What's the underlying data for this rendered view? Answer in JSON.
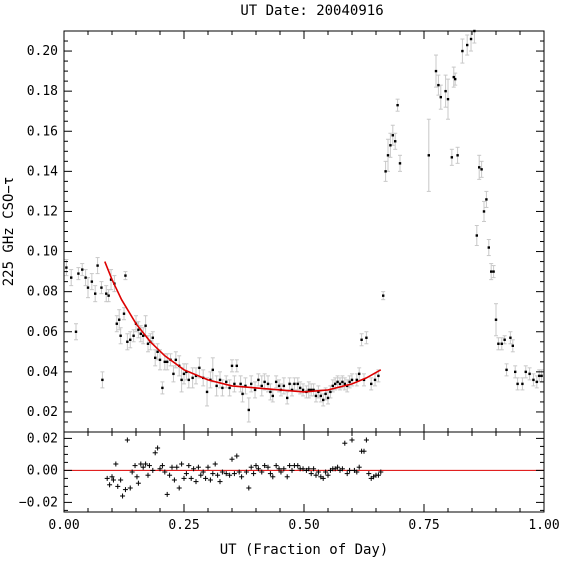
{
  "chart_data": [
    {
      "panel": "main",
      "type": "scatter",
      "title": "UT Date: 20040916",
      "xlabel": "",
      "ylabel": "225 GHz CSO−τ",
      "xlim": [
        0.0,
        1.0
      ],
      "ylim": [
        0.01,
        0.21
      ],
      "yticks": [
        0.02,
        0.04,
        0.06,
        0.08,
        0.1,
        0.12,
        0.14,
        0.16,
        0.18,
        0.2
      ],
      "ytick_labels": [
        "0.02",
        "0.04",
        "0.06",
        "0.08",
        "0.10",
        "0.12",
        "0.14",
        "0.16",
        "0.18",
        "0.20"
      ],
      "colors": {
        "points": "#000000",
        "errorbars": "#c8c8c8",
        "fit": "#dd0000"
      },
      "points": [
        [
          0.005,
          0.092,
          0.004
        ],
        [
          0.015,
          0.087,
          0.004
        ],
        [
          0.025,
          0.06,
          0.004
        ],
        [
          0.03,
          0.089,
          0.003
        ],
        [
          0.038,
          0.091,
          0.003
        ],
        [
          0.045,
          0.087,
          0.004
        ],
        [
          0.05,
          0.082,
          0.005
        ],
        [
          0.058,
          0.085,
          0.004
        ],
        [
          0.065,
          0.079,
          0.004
        ],
        [
          0.07,
          0.093,
          0.004
        ],
        [
          0.078,
          0.082,
          0.003
        ],
        [
          0.08,
          0.036,
          0.004
        ],
        [
          0.088,
          0.079,
          0.004
        ],
        [
          0.093,
          0.078,
          0.003
        ],
        [
          0.098,
          0.086,
          0.005
        ],
        [
          0.105,
          0.084,
          0.004
        ],
        [
          0.11,
          0.064,
          0.004
        ],
        [
          0.115,
          0.066,
          0.005
        ],
        [
          0.118,
          0.058,
          0.004
        ],
        [
          0.125,
          0.069,
          0.003
        ],
        [
          0.128,
          0.088,
          0.002
        ],
        [
          0.132,
          0.055,
          0.004
        ],
        [
          0.138,
          0.056,
          0.004
        ],
        [
          0.145,
          0.058,
          0.003
        ],
        [
          0.15,
          0.064,
          0.004
        ],
        [
          0.155,
          0.061,
          0.004
        ],
        [
          0.16,
          0.059,
          0.004
        ],
        [
          0.165,
          0.058,
          0.004
        ],
        [
          0.17,
          0.063,
          0.005
        ],
        [
          0.175,
          0.054,
          0.004
        ],
        [
          0.18,
          0.055,
          0.004
        ],
        [
          0.185,
          0.057,
          0.003
        ],
        [
          0.19,
          0.047,
          0.004
        ],
        [
          0.195,
          0.05,
          0.004
        ],
        [
          0.2,
          0.046,
          0.005
        ],
        [
          0.205,
          0.032,
          0.003
        ],
        [
          0.21,
          0.045,
          0.004
        ],
        [
          0.215,
          0.045,
          0.004
        ],
        [
          0.222,
          0.046,
          0.003
        ],
        [
          0.228,
          0.039,
          0.004
        ],
        [
          0.233,
          0.046,
          0.004
        ],
        [
          0.24,
          0.043,
          0.005
        ],
        [
          0.245,
          0.036,
          0.006
        ],
        [
          0.25,
          0.039,
          0.005
        ],
        [
          0.255,
          0.04,
          0.004
        ],
        [
          0.26,
          0.036,
          0.004
        ],
        [
          0.268,
          0.037,
          0.005
        ],
        [
          0.275,
          0.038,
          0.004
        ],
        [
          0.282,
          0.042,
          0.005
        ],
        [
          0.29,
          0.037,
          0.004
        ],
        [
          0.298,
          0.03,
          0.007
        ],
        [
          0.305,
          0.036,
          0.004
        ],
        [
          0.31,
          0.041,
          0.006
        ],
        [
          0.318,
          0.033,
          0.005
        ],
        [
          0.325,
          0.036,
          0.004
        ],
        [
          0.33,
          0.032,
          0.004
        ],
        [
          0.338,
          0.035,
          0.003
        ],
        [
          0.345,
          0.032,
          0.004
        ],
        [
          0.35,
          0.043,
          0.003
        ],
        [
          0.355,
          0.034,
          0.004
        ],
        [
          0.36,
          0.043,
          0.003
        ],
        [
          0.368,
          0.034,
          0.004
        ],
        [
          0.372,
          0.029,
          0.004
        ],
        [
          0.378,
          0.033,
          0.004
        ],
        [
          0.385,
          0.021,
          0.006
        ],
        [
          0.39,
          0.034,
          0.004
        ],
        [
          0.398,
          0.031,
          0.004
        ],
        [
          0.405,
          0.036,
          0.003
        ],
        [
          0.412,
          0.033,
          0.005
        ],
        [
          0.418,
          0.035,
          0.004
        ],
        [
          0.425,
          0.034,
          0.004
        ],
        [
          0.43,
          0.03,
          0.004
        ],
        [
          0.435,
          0.028,
          0.003
        ],
        [
          0.442,
          0.035,
          0.003
        ],
        [
          0.448,
          0.033,
          0.003
        ],
        [
          0.452,
          0.031,
          0.003
        ],
        [
          0.458,
          0.033,
          0.004
        ],
        [
          0.465,
          0.027,
          0.003
        ],
        [
          0.47,
          0.034,
          0.003
        ],
        [
          0.475,
          0.031,
          0.003
        ],
        [
          0.48,
          0.034,
          0.003
        ],
        [
          0.487,
          0.034,
          0.003
        ],
        [
          0.492,
          0.032,
          0.003
        ],
        [
          0.498,
          0.031,
          0.003
        ],
        [
          0.505,
          0.03,
          0.003
        ],
        [
          0.51,
          0.031,
          0.004
        ],
        [
          0.515,
          0.031,
          0.003
        ],
        [
          0.52,
          0.031,
          0.003
        ],
        [
          0.525,
          0.028,
          0.003
        ],
        [
          0.53,
          0.03,
          0.003
        ],
        [
          0.535,
          0.028,
          0.003
        ],
        [
          0.54,
          0.026,
          0.003
        ],
        [
          0.545,
          0.029,
          0.003
        ],
        [
          0.55,
          0.027,
          0.003
        ],
        [
          0.555,
          0.03,
          0.003
        ],
        [
          0.56,
          0.033,
          0.003
        ],
        [
          0.565,
          0.034,
          0.003
        ],
        [
          0.57,
          0.035,
          0.003
        ],
        [
          0.575,
          0.034,
          0.003
        ],
        [
          0.58,
          0.035,
          0.003
        ],
        [
          0.585,
          0.034,
          0.003
        ],
        [
          0.59,
          0.033,
          0.003
        ],
        [
          0.595,
          0.035,
          0.003
        ],
        [
          0.6,
          0.036,
          0.003
        ],
        [
          0.61,
          0.036,
          0.003
        ],
        [
          0.615,
          0.039,
          0.003
        ],
        [
          0.62,
          0.056,
          0.003
        ],
        [
          0.625,
          0.036,
          0.003
        ],
        [
          0.63,
          0.057,
          0.003
        ],
        [
          0.64,
          0.034,
          0.003
        ],
        [
          0.648,
          0.036,
          0.003
        ],
        [
          0.655,
          0.038,
          0.003
        ],
        [
          0.665,
          0.078,
          0.002
        ],
        [
          0.67,
          0.14,
          0.005
        ],
        [
          0.675,
          0.148,
          0.008
        ],
        [
          0.68,
          0.153,
          0.006
        ],
        [
          0.685,
          0.158,
          0.005
        ],
        [
          0.69,
          0.155,
          0.004
        ],
        [
          0.695,
          0.173,
          0.003
        ],
        [
          0.7,
          0.144,
          0.004
        ],
        [
          0.76,
          0.148,
          0.018
        ],
        [
          0.775,
          0.19,
          0.008
        ],
        [
          0.78,
          0.183,
          0.005
        ],
        [
          0.785,
          0.177,
          0.006
        ],
        [
          0.795,
          0.18,
          0.008
        ],
        [
          0.8,
          0.176,
          0.01
        ],
        [
          0.808,
          0.147,
          0.004
        ],
        [
          0.812,
          0.187,
          0.005
        ],
        [
          0.815,
          0.186,
          0.003
        ],
        [
          0.82,
          0.148,
          0.004
        ],
        [
          0.83,
          0.2,
          0.006
        ],
        [
          0.84,
          0.203,
          0.005
        ],
        [
          0.848,
          0.206,
          0.006
        ],
        [
          0.855,
          0.21,
          0.006
        ],
        [
          0.86,
          0.108,
          0.005
        ],
        [
          0.865,
          0.142,
          0.006
        ],
        [
          0.87,
          0.141,
          0.004
        ],
        [
          0.875,
          0.12,
          0.005
        ],
        [
          0.88,
          0.126,
          0.004
        ],
        [
          0.885,
          0.102,
          0.004
        ],
        [
          0.89,
          0.09,
          0.004
        ],
        [
          0.895,
          0.09,
          0.003
        ],
        [
          0.9,
          0.066,
          0.008
        ],
        [
          0.905,
          0.054,
          0.003
        ],
        [
          0.912,
          0.054,
          0.003
        ],
        [
          0.918,
          0.056,
          0.002
        ],
        [
          0.922,
          0.041,
          0.003
        ],
        [
          0.93,
          0.057,
          0.003
        ],
        [
          0.935,
          0.053,
          0.003
        ],
        [
          0.94,
          0.04,
          0.003
        ],
        [
          0.945,
          0.034,
          0.003
        ],
        [
          0.955,
          0.034,
          0.003
        ],
        [
          0.962,
          0.04,
          0.003
        ],
        [
          0.97,
          0.039,
          0.003
        ],
        [
          0.978,
          0.036,
          0.003
        ],
        [
          0.985,
          0.035,
          0.003
        ],
        [
          0.99,
          0.038,
          0.003
        ],
        [
          0.995,
          0.038,
          0.003
        ]
      ],
      "fit": [
        [
          0.085,
          0.095
        ],
        [
          0.1,
          0.086
        ],
        [
          0.12,
          0.076
        ],
        [
          0.15,
          0.064
        ],
        [
          0.18,
          0.055
        ],
        [
          0.21,
          0.048
        ],
        [
          0.25,
          0.041
        ],
        [
          0.3,
          0.036
        ],
        [
          0.35,
          0.033
        ],
        [
          0.4,
          0.032
        ],
        [
          0.45,
          0.031
        ],
        [
          0.5,
          0.03
        ],
        [
          0.55,
          0.031
        ],
        [
          0.6,
          0.034
        ],
        [
          0.63,
          0.037
        ],
        [
          0.66,
          0.041
        ]
      ]
    },
    {
      "panel": "residuals",
      "type": "scatter",
      "xlabel": "UT (Fraction of Day)",
      "ylabel": "",
      "xlim": [
        0.0,
        1.0
      ],
      "ylim": [
        -0.026,
        0.024
      ],
      "xticks": [
        0.0,
        0.25,
        0.5,
        0.75,
        1.0
      ],
      "xtick_labels": [
        "0.00",
        "0.25",
        "0.50",
        "0.75",
        "1.00"
      ],
      "yticks": [
        -0.02,
        0.0,
        0.02
      ],
      "ytick_labels": [
        "−0.02",
        "0.00",
        "0.02"
      ],
      "zero_line": 0.0,
      "colors": {
        "points": "#000000",
        "zero_line": "#dd0000"
      },
      "points": [
        [
          0.09,
          -0.005
        ],
        [
          0.095,
          -0.009
        ],
        [
          0.1,
          -0.004
        ],
        [
          0.103,
          -0.006
        ],
        [
          0.108,
          0.004
        ],
        [
          0.112,
          -0.01
        ],
        [
          0.118,
          -0.006
        ],
        [
          0.122,
          -0.016
        ],
        [
          0.128,
          -0.012
        ],
        [
          0.132,
          0.019
        ],
        [
          0.138,
          -0.011
        ],
        [
          0.142,
          -0.001
        ],
        [
          0.148,
          0.003
        ],
        [
          0.152,
          -0.004
        ],
        [
          0.155,
          -0.008
        ],
        [
          0.16,
          0.004
        ],
        [
          0.165,
          0.002
        ],
        [
          0.17,
          0.004
        ],
        [
          0.175,
          -0.003
        ],
        [
          0.178,
          0.003
        ],
        [
          0.185,
          0.0
        ],
        [
          0.19,
          0.011
        ],
        [
          0.195,
          0.014
        ],
        [
          0.2,
          0.001
        ],
        [
          0.205,
          0.003
        ],
        [
          0.21,
          -0.001
        ],
        [
          0.215,
          -0.015
        ],
        [
          0.22,
          -0.003
        ],
        [
          0.225,
          0.002
        ],
        [
          0.23,
          -0.006
        ],
        [
          0.235,
          0.002
        ],
        [
          0.24,
          -0.011
        ],
        [
          0.245,
          0.004
        ],
        [
          0.25,
          -0.005
        ],
        [
          0.255,
          -0.002
        ],
        [
          0.26,
          0.003
        ],
        [
          0.265,
          -0.005
        ],
        [
          0.27,
          0.001
        ],
        [
          0.275,
          -0.007
        ],
        [
          0.28,
          0.002
        ],
        [
          0.285,
          -0.003
        ],
        [
          0.29,
          -0.001
        ],
        [
          0.295,
          -0.005
        ],
        [
          0.3,
          0.002
        ],
        [
          0.305,
          -0.006
        ],
        [
          0.31,
          -0.002
        ],
        [
          0.315,
          0.004
        ],
        [
          0.32,
          -0.003
        ],
        [
          0.325,
          -0.007
        ],
        [
          0.33,
          -0.001
        ],
        [
          0.338,
          -0.002
        ],
        [
          0.345,
          -0.003
        ],
        [
          0.35,
          0.007
        ],
        [
          0.355,
          -0.002
        ],
        [
          0.36,
          0.009
        ],
        [
          0.365,
          -0.001
        ],
        [
          0.37,
          -0.004
        ],
        [
          0.38,
          -0.001
        ],
        [
          0.385,
          -0.011
        ],
        [
          0.39,
          0.002
        ],
        [
          0.395,
          -0.002
        ],
        [
          0.4,
          0.003
        ],
        [
          0.405,
          0.001
        ],
        [
          0.412,
          -0.001
        ],
        [
          0.418,
          0.003
        ],
        [
          0.425,
          0.002
        ],
        [
          0.43,
          -0.002
        ],
        [
          0.435,
          -0.004
        ],
        [
          0.442,
          0.003
        ],
        [
          0.448,
          0.001
        ],
        [
          0.452,
          -0.001
        ],
        [
          0.458,
          0.001
        ],
        [
          0.465,
          -0.004
        ],
        [
          0.47,
          0.003
        ],
        [
          0.475,
          0.0
        ],
        [
          0.48,
          0.003
        ],
        [
          0.487,
          0.003
        ],
        [
          0.492,
          0.001
        ],
        [
          0.498,
          0.001
        ],
        [
          0.505,
          0.0
        ],
        [
          0.51,
          0.001
        ],
        [
          0.515,
          -0.002
        ],
        [
          0.52,
          0.001
        ],
        [
          0.525,
          -0.003
        ],
        [
          0.53,
          -0.001
        ],
        [
          0.535,
          -0.004
        ],
        [
          0.54,
          -0.005
        ],
        [
          0.545,
          -0.001
        ],
        [
          0.55,
          -0.003
        ],
        [
          0.555,
          0.0
        ],
        [
          0.56,
          0.001
        ],
        [
          0.565,
          0.001
        ],
        [
          0.57,
          0.002
        ],
        [
          0.575,
          0.0
        ],
        [
          0.58,
          0.001
        ],
        [
          0.585,
          0.017
        ],
        [
          0.59,
          -0.002
        ],
        [
          0.595,
          0.0
        ],
        [
          0.6,
          0.019
        ],
        [
          0.605,
          0.0
        ],
        [
          0.61,
          -0.001
        ],
        [
          0.615,
          0.002
        ],
        [
          0.62,
          0.012
        ],
        [
          0.625,
          0.012
        ],
        [
          0.63,
          0.019
        ],
        [
          0.635,
          -0.002
        ],
        [
          0.64,
          -0.005
        ],
        [
          0.645,
          -0.004
        ],
        [
          0.65,
          -0.003
        ],
        [
          0.655,
          -0.003
        ],
        [
          0.66,
          -0.001
        ]
      ]
    }
  ]
}
